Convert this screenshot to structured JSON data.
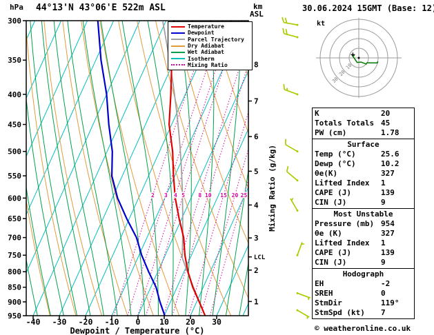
{
  "header": {
    "pressure_unit": "hPa",
    "title": "44°13'N 43°06'E 522m ASL",
    "altitude_unit_line1": "km",
    "altitude_unit_line2": "ASL",
    "datetime": "30.06.2024 15GMT (Base: 12)"
  },
  "footer": {
    "copyright": "© weatheronline.co.uk"
  },
  "axes": {
    "xlabel": "Dewpoint / Temperature (°C)",
    "right_label": "Mixing Ratio (g/kg)",
    "pressure_ticks": [
      300,
      350,
      400,
      450,
      500,
      550,
      600,
      650,
      700,
      750,
      800,
      850,
      900,
      950
    ],
    "temp_ticks": [
      -40,
      -30,
      -20,
      -10,
      0,
      10,
      20,
      30
    ],
    "km_ticks": [
      1,
      2,
      3,
      4,
      5,
      6,
      7,
      8
    ],
    "lcl_label": "LCL"
  },
  "colors": {
    "temperature": "#e00000",
    "dewpoint": "#0000cd",
    "parcel": "#a0a0a0",
    "dry_adiabat": "#e39a3b",
    "wet_adiabat": "#00a04a",
    "isotherm": "#00bfbf",
    "mixing_ratio": "#d4009e",
    "wind_barb": "#aacc00",
    "axis": "#000000",
    "hodograph_grid": "#999999",
    "hodograph_trace": "#007700"
  },
  "legend": [
    {
      "label": "Temperature",
      "color_key": "temperature",
      "style": "solid"
    },
    {
      "label": "Dewpoint",
      "color_key": "dewpoint",
      "style": "solid"
    },
    {
      "label": "Parcel Trajectory",
      "color_key": "parcel",
      "style": "solid"
    },
    {
      "label": "Dry Adiabat",
      "color_key": "dry_adiabat",
      "style": "solid"
    },
    {
      "label": "Wet Adiabat",
      "color_key": "wet_adiabat",
      "style": "solid"
    },
    {
      "label": "Isotherm",
      "color_key": "isotherm",
      "style": "solid"
    },
    {
      "label": "Mixing Ratio",
      "color_key": "mixing_ratio",
      "style": "dotted"
    }
  ],
  "chart_data": {
    "type": "line",
    "subtype": "skew-t-log-p",
    "title": "44°13'N 43°06'E 522m ASL",
    "x_axis": {
      "label": "Dewpoint / Temperature (°C)",
      "range": [
        -40,
        35
      ],
      "skewed": true
    },
    "y_axis": {
      "label": "hPa",
      "scale": "log",
      "range": [
        950,
        300
      ]
    },
    "mixing_ratio_lines": [
      2,
      3,
      4,
      5,
      8,
      10,
      15,
      20,
      25
    ],
    "series": [
      {
        "name": "Temperature",
        "color_key": "temperature",
        "points": [
          [
            950,
            25.6
          ],
          [
            900,
            21
          ],
          [
            850,
            16
          ],
          [
            800,
            11.5
          ],
          [
            750,
            7.5
          ],
          [
            700,
            4
          ],
          [
            650,
            -1
          ],
          [
            600,
            -6
          ],
          [
            550,
            -10.5
          ],
          [
            500,
            -15
          ],
          [
            450,
            -21
          ],
          [
            400,
            -25.5
          ],
          [
            350,
            -31
          ],
          [
            300,
            -37
          ]
        ]
      },
      {
        "name": "Dewpoint",
        "color_key": "dewpoint",
        "points": [
          [
            950,
            10.2
          ],
          [
            900,
            6
          ],
          [
            850,
            2
          ],
          [
            800,
            -3.5
          ],
          [
            750,
            -9
          ],
          [
            700,
            -14
          ],
          [
            650,
            -21
          ],
          [
            600,
            -28
          ],
          [
            550,
            -34
          ],
          [
            500,
            -38
          ],
          [
            450,
            -44
          ],
          [
            400,
            -50
          ],
          [
            350,
            -58
          ],
          [
            300,
            -66
          ]
        ]
      }
    ],
    "parcel": {
      "surface_pressure": 950,
      "surface_temp": 25.6,
      "surface_dewpoint": 10.2,
      "lcl_pressure": 755
    },
    "wind_barbs": [
      {
        "p": 305,
        "dir": 280,
        "spd": 20
      },
      {
        "p": 320,
        "dir": 285,
        "spd": 20
      },
      {
        "p": 400,
        "dir": 290,
        "spd": 15
      },
      {
        "p": 500,
        "dir": 300,
        "spd": 10
      },
      {
        "p": 560,
        "dir": 310,
        "spd": 10
      },
      {
        "p": 630,
        "dir": 330,
        "spd": 5
      },
      {
        "p": 750,
        "dir": 20,
        "spd": 5
      },
      {
        "p": 870,
        "dir": 110,
        "spd": 7
      },
      {
        "p": 930,
        "dir": 120,
        "spd": 5
      }
    ]
  },
  "hodograph": {
    "unit_label": "kt",
    "ring_step_kt": 10,
    "ring_labels": [
      "10",
      "20",
      "30"
    ],
    "storm_dir_deg": 119,
    "storm_speed_kt": 7
  },
  "panel": {
    "sections": [
      {
        "title": "",
        "rows": [
          {
            "label": "K",
            "value": "20"
          },
          {
            "label": "Totals Totals",
            "value": "45"
          },
          {
            "label": "PW (cm)",
            "value": "1.78"
          }
        ]
      },
      {
        "title": "Surface",
        "rows": [
          {
            "label": "Temp (°C)",
            "value": "25.6"
          },
          {
            "label": "Dewp (°C)",
            "value": "10.2"
          },
          {
            "label": "θe(K)",
            "value": "327"
          },
          {
            "label": "Lifted Index",
            "value": "1"
          },
          {
            "label": "CAPE (J)",
            "value": "139"
          },
          {
            "label": "CIN (J)",
            "value": "9"
          }
        ]
      },
      {
        "title": "Most Unstable",
        "rows": [
          {
            "label": "Pressure (mb)",
            "value": "954"
          },
          {
            "label": "θe (K)",
            "value": "327"
          },
          {
            "label": "Lifted Index",
            "value": "1"
          },
          {
            "label": "CAPE (J)",
            "value": "139"
          },
          {
            "label": "CIN (J)",
            "value": "9"
          }
        ]
      },
      {
        "title": "Hodograph",
        "rows": [
          {
            "label": "EH",
            "value": "-2"
          },
          {
            "label": "SREH",
            "value": "0"
          },
          {
            "label": "StmDir",
            "value": "119°"
          },
          {
            "label": "StmSpd (kt)",
            "value": "7"
          }
        ]
      }
    ]
  }
}
